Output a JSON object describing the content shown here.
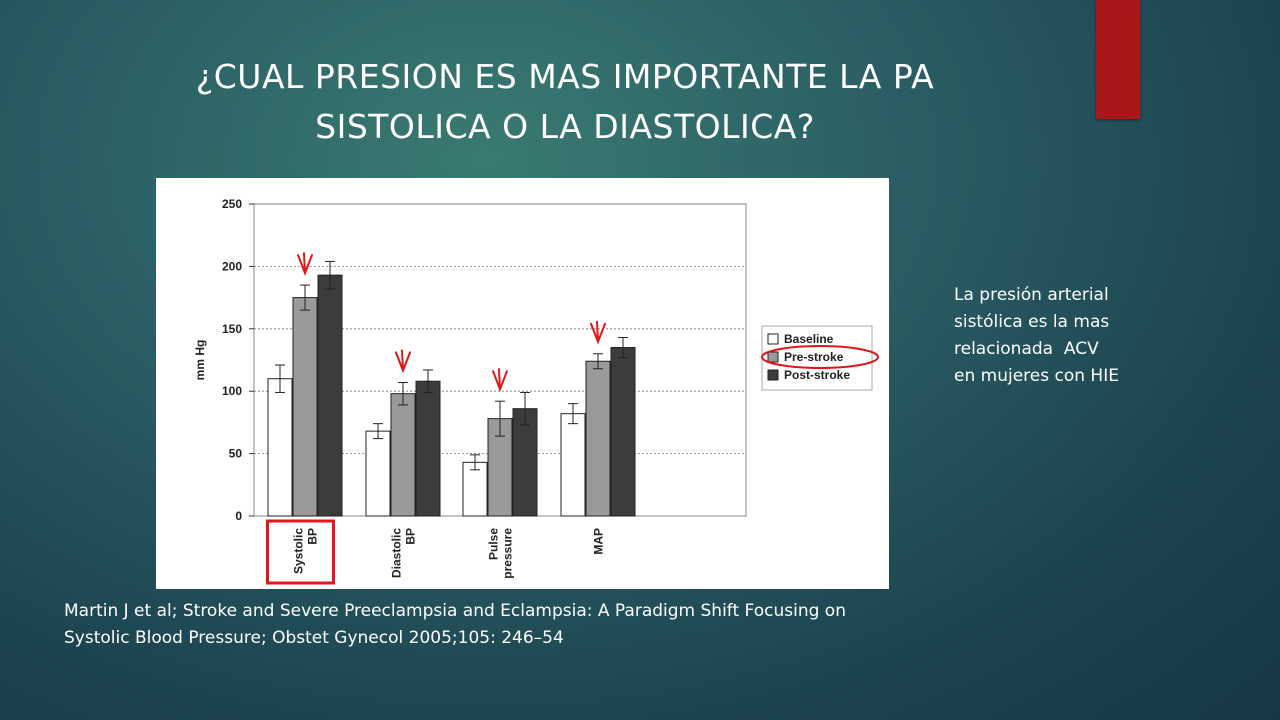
{
  "slide": {
    "title_lines": [
      "¿CUAL PRESION ES MAS IMPORTANTE LA PA",
      "SISTOLICA O LA DIASTOLICA?"
    ],
    "side_note_lines": [
      "La presión arterial",
      "sistólica es la mas",
      "relacionada  ACV",
      "en mujeres con HIE"
    ],
    "citation_lines": [
      "Martin J et al; Stroke and Severe Preeclampsia and Eclampsia: A Paradigm Shift Focusing on",
      "Systolic Blood Pressure; Obstet Gynecol 2005;105:  246–54"
    ],
    "colors": {
      "accent_bar": "#a8171a",
      "highlight_red": "#e0161b"
    }
  },
  "chart_data": {
    "type": "bar",
    "ylabel": "mm Hg",
    "ylim": [
      0,
      250
    ],
    "yticks": [
      0,
      50,
      100,
      150,
      200,
      250
    ],
    "grid": true,
    "categories": [
      {
        "lines": [
          "Systolic",
          "BP"
        ]
      },
      {
        "lines": [
          "Diastolic",
          "BP"
        ]
      },
      {
        "lines": [
          "Pulse",
          "pressure"
        ]
      },
      {
        "lines": [
          "MAP"
        ]
      }
    ],
    "series": [
      {
        "name": "Baseline",
        "color": "#ffffff",
        "values": [
          110,
          68,
          43,
          82
        ],
        "errors": [
          11,
          6,
          6,
          8
        ]
      },
      {
        "name": "Pre-stroke",
        "color": "#9a9a9a",
        "values": [
          175,
          98,
          78,
          124
        ],
        "errors": [
          10,
          9,
          14,
          6
        ]
      },
      {
        "name": "Post-stroke",
        "color": "#3c3c3c",
        "values": [
          193,
          108,
          86,
          135
        ],
        "errors": [
          11,
          9,
          13,
          8
        ]
      }
    ],
    "legend_position": "right",
    "annotations": {
      "arrows_over_series": "Pre-stroke",
      "circled_legend_entry": "Pre-stroke",
      "boxed_category": "Systolic BP"
    }
  }
}
